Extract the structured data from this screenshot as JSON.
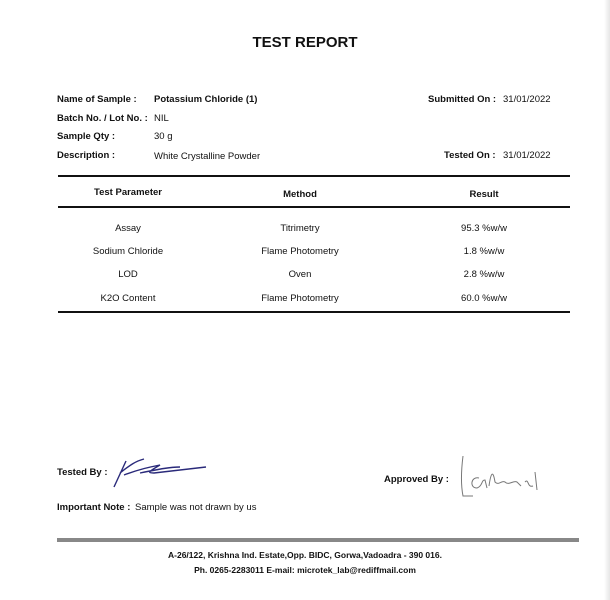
{
  "title": "TEST REPORT",
  "details": {
    "name_label": "Name of Sample :",
    "name_value": "Potassium Chloride (1)",
    "batch_label": "Batch No. / Lot No. :",
    "batch_value": "NIL",
    "qty_label": "Sample Qty :",
    "qty_value": "30 g",
    "desc_label": "Description :",
    "desc_value": "White Crystalline Powder",
    "submitted_label": "Submitted On :",
    "submitted_value": "31/01/2022",
    "tested_label": "Tested On :",
    "tested_value": "31/01/2022"
  },
  "table": {
    "headers": [
      "Test Parameter",
      "Method",
      "Result"
    ],
    "rows": [
      [
        "Assay",
        "Titrimetry",
        "95.3 %w/w"
      ],
      [
        "Sodium Chloride",
        "Flame Photometry",
        "1.8 %w/w"
      ],
      [
        "LOD",
        "Oven",
        "2.8 %w/w"
      ],
      [
        "K2O Content",
        "Flame Photometry",
        "60.0 %w/w"
      ]
    ]
  },
  "footer": {
    "tested_by_label": "Tested By :",
    "approved_by_label": "Approved By :",
    "note_label": "Important Note :",
    "note_value": "Sample was not drawn by us",
    "address": "A-26/122, Krishna Ind. Estate,Opp. BIDC, Gorwa,Vadoadra - 390 016.",
    "contact": "Ph. 0265-2283011 E-mail: microtek_lab@rediffmail.com"
  },
  "colors": {
    "signature_tested": "#2a2a7a",
    "signature_approved": "#777777",
    "footer_rule": "#888888"
  }
}
